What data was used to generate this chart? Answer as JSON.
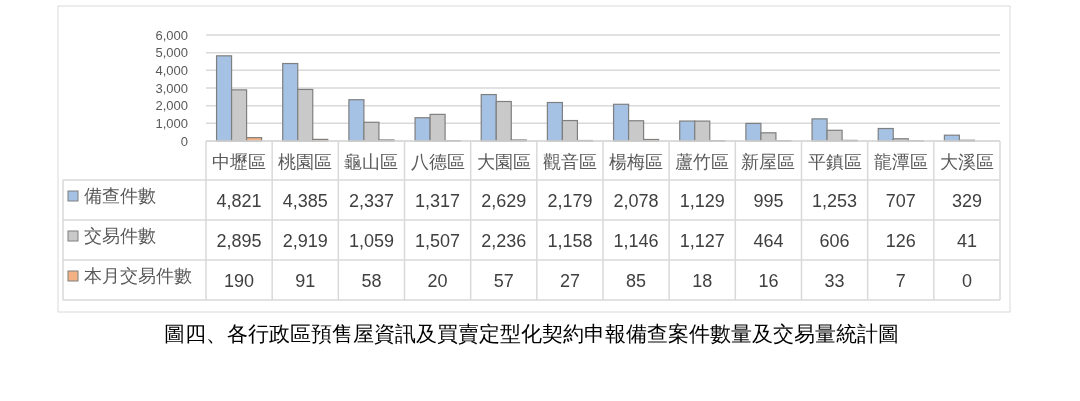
{
  "chart_data": {
    "type": "bar",
    "title": "圖四、各行政區預售屋資訊及買賣定型化契約申報備查案件數量及交易量統計圖",
    "categories": [
      "中壢區",
      "桃園區",
      "龜山區",
      "八德區",
      "大園區",
      "觀音區",
      "楊梅區",
      "蘆竹區",
      "新屋區",
      "平鎮區",
      "龍潭區",
      "大溪區"
    ],
    "series": [
      {
        "name": "備查件數",
        "color": "#a5c2e5",
        "values": [
          4821,
          4385,
          2337,
          1317,
          2629,
          2179,
          2078,
          1129,
          995,
          1253,
          707,
          329
        ],
        "value_labels": [
          "4,821",
          "4,385",
          "2,337",
          "1,317",
          "2,629",
          "2,179",
          "2,078",
          "1,129",
          "995",
          "1,253",
          "707",
          "329"
        ]
      },
      {
        "name": "交易件數",
        "color": "#c9c9c9",
        "values": [
          2895,
          2919,
          1059,
          1507,
          2236,
          1158,
          1146,
          1127,
          464,
          606,
          126,
          41
        ],
        "value_labels": [
          "2,895",
          "2,919",
          "1,059",
          "1,507",
          "2,236",
          "1,158",
          "1,146",
          "1,127",
          "464",
          "606",
          "126",
          "41"
        ]
      },
      {
        "name": "本月交易件數",
        "color": "#f4b183",
        "values": [
          190,
          91,
          58,
          20,
          57,
          27,
          85,
          18,
          16,
          33,
          7,
          0
        ],
        "value_labels": [
          "190",
          "91",
          "58",
          "20",
          "57",
          "27",
          "85",
          "18",
          "16",
          "33",
          "7",
          "0"
        ]
      }
    ],
    "ylim": [
      0,
      6000
    ],
    "yticks": [
      0,
      {
        "value": 1000,
        "label": "1,000"
      },
      {
        "value": 2000,
        "label": "2,000"
      },
      {
        "value": 3000,
        "label": "3,000"
      },
      {
        "value": 4000,
        "label": "4,000"
      },
      {
        "value": 5000,
        "label": "5,000"
      },
      {
        "value": 6000,
        "label": "6,000"
      }
    ],
    "grid": "y",
    "legend": "bottom left"
  }
}
